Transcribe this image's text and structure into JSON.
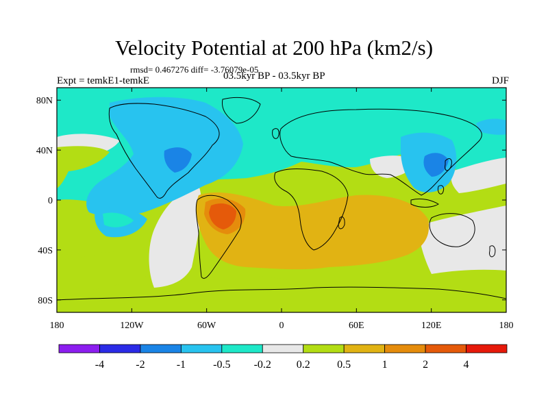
{
  "title": "Velocity Potential at 200 hPa (km2/s)",
  "stats": "rmsd= 0.467276 diff= -3.76079e-05",
  "expt": "Expt = temkE1-temkE",
  "period": "03.5kyr BP - 03.5kyr BP",
  "season": "DJF",
  "map": {
    "projection": "cylindrical equidistant",
    "lon_range": [
      -180,
      180
    ],
    "lat_range": [
      -90,
      90
    ],
    "lat_ticks": [
      {
        "label": "80N",
        "lat": 80
      },
      {
        "label": "40N",
        "lat": 40
      },
      {
        "label": "0",
        "lat": 0
      },
      {
        "label": "40S",
        "lat": -40
      },
      {
        "label": "80S",
        "lat": -80
      }
    ],
    "lon_ticks": [
      {
        "label": "180",
        "lon": -180
      },
      {
        "label": "120W",
        "lon": -120
      },
      {
        "label": "60W",
        "lon": -60
      },
      {
        "label": "0",
        "lon": 0
      },
      {
        "label": "60E",
        "lon": 60
      },
      {
        "label": "120E",
        "lon": 120
      },
      {
        "label": "180",
        "lon": 180
      }
    ]
  },
  "colorbar": {
    "colors": [
      "#8c1eef",
      "#2b2be6",
      "#1a84e6",
      "#28c3ef",
      "#1ee8c8",
      "#e8e8e8",
      "#b3dd14",
      "#e1b313",
      "#e58c0c",
      "#e55a0a",
      "#e6190a"
    ],
    "labels": [
      "-4",
      "-2",
      "-1",
      "-0.5",
      "-0.2",
      "0.2",
      "0.5",
      "1",
      "2",
      "4"
    ]
  },
  "colors": {
    "cyan": "#1ee8c8",
    "light_blue": "#28c3ef",
    "mid_blue": "#1a84e6",
    "grey": "#e8e8e8",
    "yellow_green": "#b3dd14",
    "gold": "#e1b313",
    "orange": "#e58c0c",
    "dark_orange": "#e55a0a"
  }
}
